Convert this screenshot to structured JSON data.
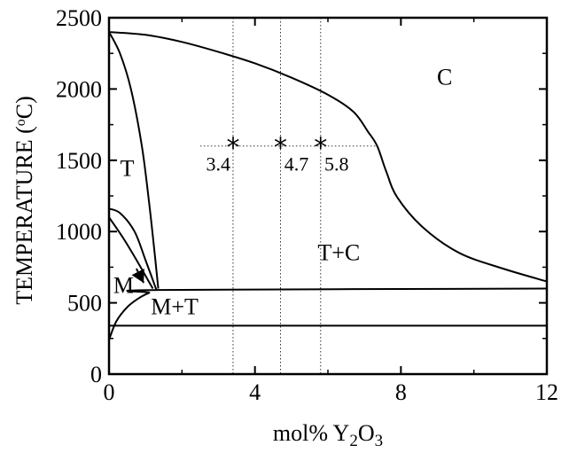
{
  "chart_data": {
    "type": "line",
    "xlabel": {
      "base": "mol% Y",
      "sub1": "2",
      "mid": "O",
      "sub2": "3"
    },
    "ylabel": {
      "pre": "TEMPERATURE (",
      "sup": "o",
      "post": "C)"
    },
    "xlim": [
      0,
      12
    ],
    "ylim": [
      0,
      2500
    ],
    "x_ticks": [
      0,
      4,
      8,
      12
    ],
    "y_ticks": [
      0,
      500,
      1000,
      1500,
      2000,
      2500
    ],
    "region_labels": [
      {
        "text": "C",
        "x": 9.2,
        "y": 2030
      },
      {
        "text": "T",
        "x": 0.5,
        "y": 1390
      },
      {
        "text": "T+C",
        "x": 6.3,
        "y": 800
      },
      {
        "text": "M",
        "x": 0.4,
        "y": 570
      },
      {
        "text": "M+T",
        "x": 1.8,
        "y": 420
      }
    ],
    "markers": [
      {
        "x": 3.4,
        "y": 1600,
        "label": "3.4"
      },
      {
        "x": 4.7,
        "y": 1600,
        "label": "4.7"
      },
      {
        "x": 5.8,
        "y": 1600,
        "label": "5.8"
      }
    ],
    "series": [
      {
        "points": [
          [
            0,
            2400
          ],
          [
            1,
            2380
          ],
          [
            2,
            2330
          ],
          [
            3,
            2260
          ],
          [
            4,
            2180
          ],
          [
            5,
            2080
          ],
          [
            6,
            1960
          ],
          [
            6.7,
            1840
          ],
          [
            7.1,
            1700
          ],
          [
            7.35,
            1600
          ],
          [
            7.6,
            1420
          ],
          [
            7.9,
            1240
          ],
          [
            8.6,
            1030
          ],
          [
            9.6,
            850
          ],
          [
            10.8,
            740
          ],
          [
            12,
            650
          ]
        ]
      },
      {
        "points": [
          [
            0,
            2400
          ],
          [
            0.3,
            2250
          ],
          [
            0.6,
            2000
          ],
          [
            0.9,
            1600
          ],
          [
            1.1,
            1200
          ],
          [
            1.25,
            850
          ],
          [
            1.35,
            600
          ]
        ]
      },
      {
        "points": [
          [
            0,
            1160
          ],
          [
            0.3,
            1130
          ],
          [
            0.7,
            1000
          ],
          [
            1.0,
            800
          ],
          [
            1.3,
            590
          ]
        ]
      },
      {
        "points": [
          [
            0,
            1100
          ],
          [
            0.4,
            950
          ],
          [
            0.8,
            780
          ],
          [
            1.2,
            600
          ]
        ]
      },
      {
        "points": [
          [
            0,
            240
          ],
          [
            0.2,
            370
          ],
          [
            0.5,
            470
          ],
          [
            0.8,
            530
          ],
          [
            1.1,
            570
          ],
          [
            1.35,
            590
          ],
          [
            12,
            600
          ]
        ]
      },
      {
        "points": [
          [
            0,
            340
          ],
          [
            12,
            340
          ]
        ]
      }
    ],
    "guide_lines": {
      "x": [
        3.4,
        4.7,
        5.8
      ],
      "y": 1600
    },
    "arrow": {
      "from": [
        0.75,
        740
      ],
      "to": [
        0.95,
        640
      ]
    },
    "grid": false
  }
}
